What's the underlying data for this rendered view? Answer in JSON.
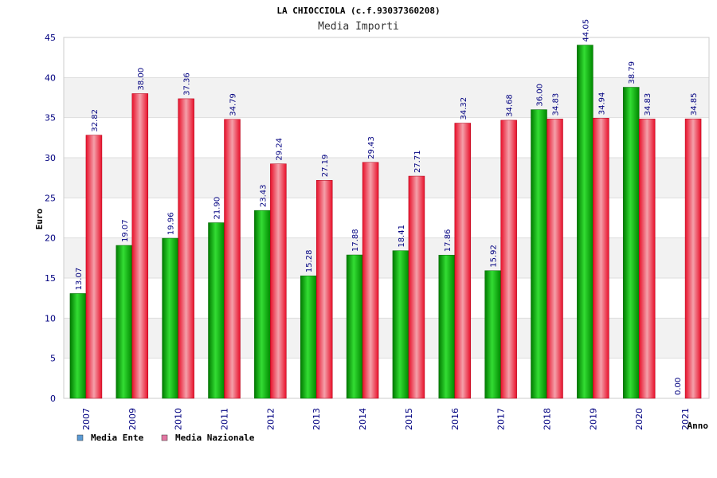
{
  "chart_data": {
    "type": "bar",
    "title": "LA CHIOCCIOLA (c.f.93037360208)",
    "subtitle": "Media Importi",
    "xlabel": "Anno",
    "ylabel": "Euro",
    "ylim": [
      0,
      45
    ],
    "yticks": [
      "0",
      "5",
      "10",
      "15",
      "20",
      "25",
      "30",
      "35",
      "40",
      "45"
    ],
    "grid": true,
    "legend_position": "bottom-left",
    "categories": [
      "2007",
      "2009",
      "2010",
      "2011",
      "2012",
      "2013",
      "2014",
      "2015",
      "2016",
      "2017",
      "2018",
      "2019",
      "2020",
      "2021"
    ],
    "series": [
      {
        "name": "Media Ente",
        "color": "#00a000",
        "legend_color": "#5b9bd5",
        "values": [
          13.07,
          19.07,
          19.96,
          21.9,
          23.43,
          15.28,
          17.88,
          18.41,
          17.86,
          15.92,
          36.0,
          44.05,
          38.79,
          0.0
        ],
        "labels": [
          "13.07",
          "19.07",
          "19.96",
          "21.90",
          "23.43",
          "15.28",
          "17.88",
          "18.41",
          "17.86",
          "15.92",
          "36.00",
          "44.05",
          "38.79",
          "0.00"
        ]
      },
      {
        "name": "Media Nazionale",
        "color": "#e8102a",
        "legend_color": "#e377a2",
        "values": [
          32.82,
          38.0,
          37.36,
          34.79,
          29.24,
          27.19,
          29.43,
          27.71,
          34.32,
          34.68,
          34.83,
          34.94,
          34.83,
          34.85
        ],
        "labels": [
          "32.82",
          "38.00",
          "37.36",
          "34.79",
          "29.24",
          "27.19",
          "29.43",
          "27.71",
          "34.32",
          "34.68",
          "34.83",
          "34.94",
          "34.83",
          "34.85"
        ]
      }
    ]
  }
}
